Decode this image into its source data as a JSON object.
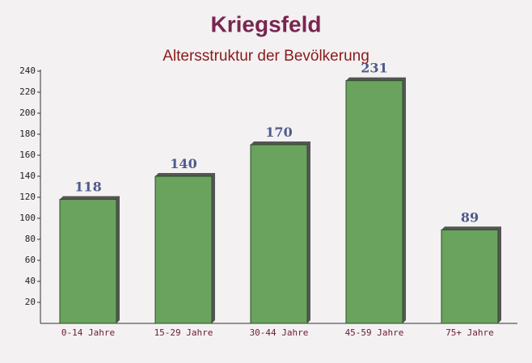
{
  "chart_data": {
    "type": "bar",
    "title": "Kriegsfeld",
    "subtitle": "Altersstruktur der Bevölkerung",
    "categories": [
      "0-14 Jahre",
      "15-29 Jahre",
      "30-44 Jahre",
      "45-59 Jahre",
      "75+ Jahre"
    ],
    "values": [
      118,
      140,
      170,
      231,
      89
    ],
    "color": "#6aa35e",
    "ylim": [
      0,
      240
    ],
    "yticks": [
      20,
      40,
      60,
      80,
      100,
      120,
      140,
      160,
      180,
      200,
      220,
      240
    ],
    "grid": false
  }
}
